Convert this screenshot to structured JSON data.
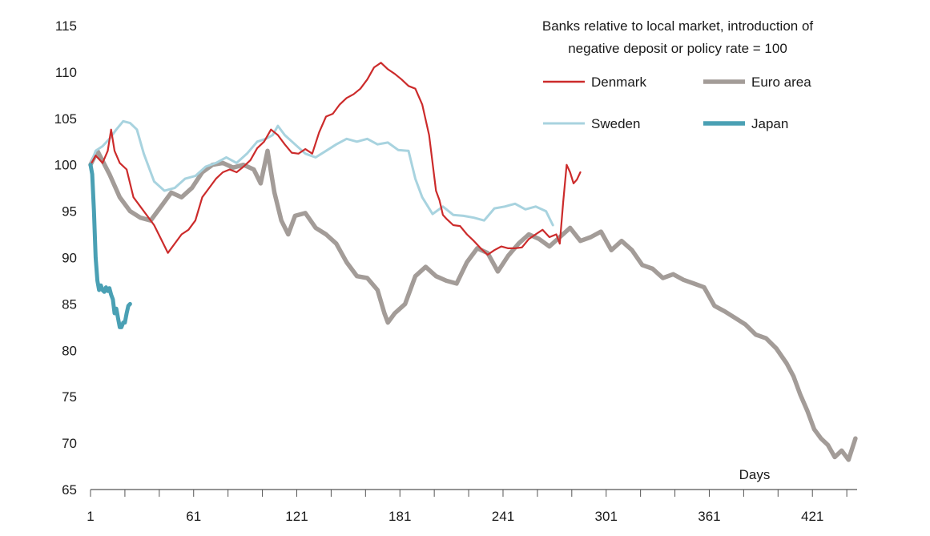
{
  "chart_data": {
    "type": "line",
    "title": "Banks relative to local market, introduction of negative deposit or policy rate = 100",
    "title_lines": [
      "Banks relative to local market, introduction of",
      "negative deposit or policy rate = 100"
    ],
    "xlabel": "Days",
    "ylabel": "",
    "xlim": [
      1,
      447
    ],
    "ylim": [
      65,
      115
    ],
    "x_ticks": [
      1,
      61,
      121,
      181,
      241,
      301,
      361,
      421
    ],
    "x_tick_labels": [
      "1",
      "61",
      "121",
      "181",
      "241",
      "301",
      "361",
      "421"
    ],
    "y_ticks": [
      65,
      70,
      75,
      80,
      85,
      90,
      95,
      100,
      105,
      110,
      115
    ],
    "y_tick_labels": [
      "65",
      "70",
      "75",
      "80",
      "85",
      "90",
      "95",
      "100",
      "105",
      "110",
      "115"
    ],
    "grid": false,
    "legend_position": "top-right",
    "series": [
      {
        "name": "Euro area",
        "color": "#a39c98",
        "x": [
          1,
          5,
          12,
          18,
          24,
          30,
          36,
          42,
          48,
          54,
          60,
          66,
          72,
          78,
          84,
          90,
          96,
          100,
          104,
          108,
          112,
          116,
          120,
          126,
          132,
          138,
          144,
          150,
          156,
          162,
          168,
          172,
          174,
          178,
          184,
          190,
          196,
          202,
          208,
          214,
          220,
          226,
          232,
          238,
          244,
          250,
          256,
          262,
          268,
          274,
          280,
          286,
          292,
          298,
          304,
          310,
          316,
          322,
          328,
          334,
          340,
          346,
          352,
          358,
          364,
          370,
          376,
          382,
          388,
          394,
          400,
          406,
          410,
          414,
          418,
          422,
          426,
          430,
          434,
          438,
          442,
          446
        ],
        "y": [
          100,
          101.5,
          99,
          96.5,
          95,
          94.3,
          94,
          95.5,
          97,
          96.5,
          97.5,
          99.2,
          100,
          100.2,
          99.7,
          100,
          99.5,
          98,
          101.5,
          97,
          94,
          92.5,
          94.5,
          94.8,
          93.2,
          92.5,
          91.5,
          89.5,
          88,
          87.8,
          86.5,
          84,
          83,
          84,
          85,
          88,
          89,
          88,
          87.5,
          87.2,
          89.5,
          91,
          90.5,
          88.5,
          90.2,
          91.5,
          92.5,
          92,
          91.2,
          92.2,
          93.2,
          91.8,
          92.2,
          92.8,
          90.8,
          91.8,
          90.8,
          89.2,
          88.8,
          87.8,
          88.2,
          87.6,
          87.2,
          86.8,
          84.8,
          84.2,
          83.5,
          82.8,
          81.7,
          81.3,
          80.2,
          78.6,
          77.2,
          75.2,
          73.5,
          71.5,
          70.5,
          69.8,
          68.5,
          69.2,
          68.2,
          70.5
        ]
      },
      {
        "name": "Sweden",
        "color": "#a8d3df",
        "x": [
          1,
          4,
          8,
          12,
          16,
          20,
          24,
          28,
          32,
          38,
          44,
          50,
          56,
          62,
          68,
          74,
          80,
          86,
          92,
          98,
          103,
          107,
          110,
          114,
          120,
          126,
          132,
          138,
          144,
          150,
          156,
          162,
          168,
          174,
          180,
          186,
          190,
          194,
          200,
          206,
          212,
          218,
          224,
          230,
          236,
          242,
          248,
          254,
          260,
          266,
          270
        ],
        "y": [
          100,
          101.5,
          102,
          102.8,
          103.8,
          104.7,
          104.5,
          103.8,
          101.2,
          98.2,
          97.2,
          97.5,
          98.5,
          98.8,
          99.8,
          100.2,
          100.8,
          100.2,
          101.2,
          102.5,
          102.8,
          103.2,
          104.2,
          103.2,
          102.2,
          101.2,
          100.8,
          101.5,
          102.2,
          102.8,
          102.5,
          102.8,
          102.2,
          102.4,
          101.6,
          101.5,
          98.5,
          96.5,
          94.7,
          95.5,
          94.6,
          94.5,
          94.3,
          94,
          95.3,
          95.5,
          95.8,
          95.2,
          95.5,
          95,
          93.5
        ]
      },
      {
        "name": "Denmark",
        "color": "#cc2b2b",
        "x": [
          1,
          4,
          8,
          11,
          13,
          15,
          18,
          22,
          26,
          30,
          34,
          38,
          42,
          46,
          50,
          54,
          58,
          62,
          66,
          70,
          74,
          78,
          82,
          86,
          90,
          94,
          98,
          102,
          106,
          110,
          114,
          118,
          122,
          126,
          130,
          134,
          138,
          142,
          146,
          150,
          154,
          158,
          162,
          166,
          170,
          174,
          178,
          182,
          186,
          190,
          194,
          198,
          200,
          202,
          204,
          206,
          208,
          212,
          216,
          220,
          224,
          228,
          232,
          236,
          240,
          244,
          248,
          252,
          256,
          260,
          264,
          268,
          272,
          274,
          276,
          278,
          280,
          282,
          284,
          286
        ],
        "y": [
          100,
          101,
          100.2,
          101.5,
          103.8,
          101.5,
          100.2,
          99.5,
          96.5,
          95.5,
          94.5,
          93.5,
          92,
          90.5,
          91.5,
          92.5,
          93,
          94,
          96.5,
          97.5,
          98.5,
          99.2,
          99.5,
          99.2,
          99.8,
          100.5,
          101.8,
          102.5,
          103.8,
          103.2,
          102.2,
          101.3,
          101.2,
          101.7,
          101.2,
          103.5,
          105.2,
          105.5,
          106.5,
          107.2,
          107.6,
          108.2,
          109.2,
          110.5,
          111,
          110.3,
          109.8,
          109.2,
          108.5,
          108.2,
          106.5,
          103.2,
          100.2,
          97.2,
          96.2,
          94.6,
          94.2,
          93.5,
          93.4,
          92.5,
          91.8,
          91,
          90.3,
          90.8,
          91.2,
          91,
          91,
          91.1,
          92,
          92.5,
          93,
          92.2,
          92.5,
          91.5,
          96,
          100,
          99.2,
          98,
          98.4,
          99.2
        ]
      },
      {
        "name": "Japan",
        "color": "#4aa0b4",
        "x": [
          1,
          2,
          3,
          4,
          5,
          6,
          7,
          8,
          9,
          10,
          11,
          12,
          13,
          14,
          15,
          16,
          17,
          18,
          19,
          20,
          21,
          22,
          23,
          24
        ],
        "y": [
          100,
          99,
          95,
          90,
          87.5,
          86.5,
          87,
          86.5,
          86.3,
          86.8,
          86.4,
          86.7,
          86,
          85.5,
          84,
          84.5,
          83.5,
          82.5,
          82.5,
          83,
          83,
          84,
          84.8,
          85
        ]
      }
    ]
  }
}
